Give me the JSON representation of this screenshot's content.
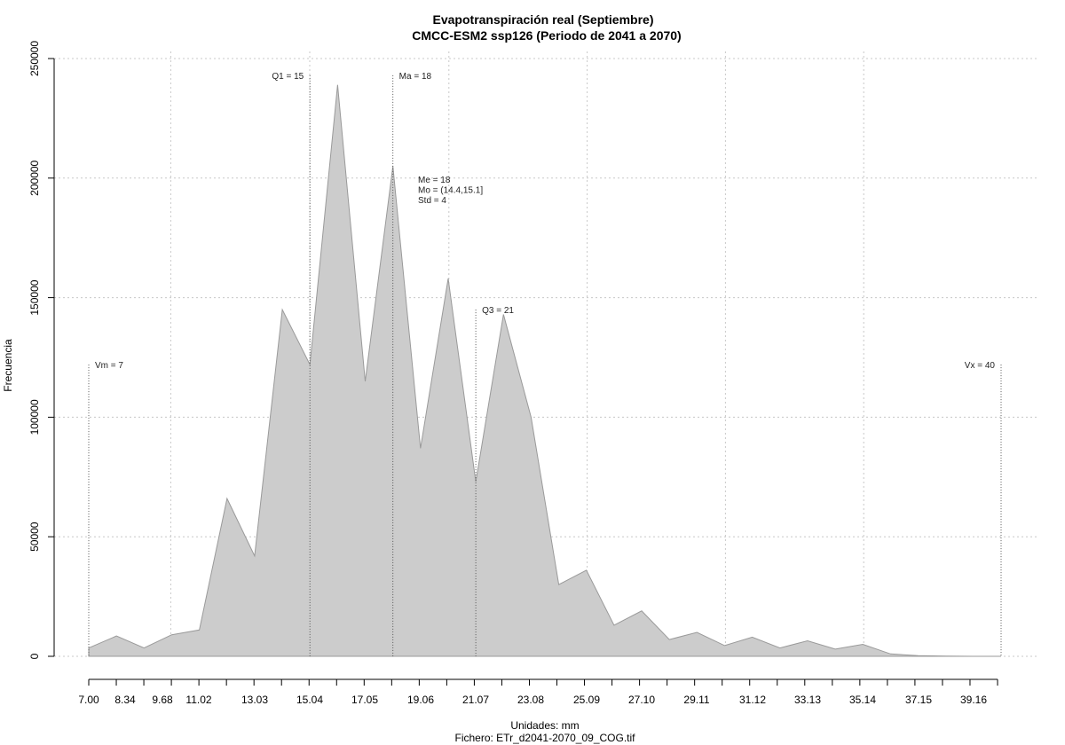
{
  "chart_data": {
    "type": "area",
    "title": "Evapotranspiración real (Septiembre)",
    "subtitle": "CMCC-ESM2 ssp126 (Periodo de 2041 a 2070)",
    "xlabel": "Unidades: mm",
    "ylabel": "Frecuencia",
    "caption": "Fichero: ETr_d2041-2070_09_COG.tif",
    "xlim": [
      7.0,
      40.8
    ],
    "ylim": [
      0,
      250000
    ],
    "grid": true,
    "x_ticks": [
      7.0,
      8.34,
      9.68,
      11.02,
      13.03,
      15.04,
      17.05,
      19.06,
      21.07,
      23.08,
      25.09,
      27.1,
      29.11,
      31.12,
      33.13,
      35.14,
      37.15,
      39.16
    ],
    "x_tick_labels": [
      "7.00",
      "8.34",
      "9.68",
      "11.02",
      "13.03",
      "15.04",
      "17.05",
      "19.06",
      "21.07",
      "23.08",
      "25.09",
      "27.10",
      "29.11",
      "31.12",
      "33.13",
      "35.14",
      "37.15",
      "39.16"
    ],
    "y_ticks": [
      0,
      50000,
      100000,
      150000,
      200000,
      250000
    ],
    "y_tick_labels": [
      "0",
      "50000",
      "100000",
      "150000",
      "200000",
      "250000"
    ],
    "series": [
      {
        "x": [
          7.0,
          8.0,
          9.0,
          10.0,
          11.0,
          12.0,
          13.0,
          14.0,
          15.0,
          16.0,
          17.0,
          18.0,
          19.0,
          20.0,
          21.0,
          22.0,
          23.0,
          24.0,
          25.0,
          26.0,
          27.0,
          28.0,
          29.0,
          30.0,
          31.0,
          32.0,
          33.0,
          34.0,
          35.0,
          36.0,
          37.0,
          38.0,
          39.0,
          40.0
        ],
        "values": [
          3500,
          8500,
          3500,
          9000,
          11000,
          66000,
          42000,
          145000,
          122000,
          239000,
          115000,
          205000,
          87000,
          158000,
          73000,
          143000,
          100000,
          30000,
          36000,
          13000,
          19000,
          7000,
          10000,
          4500,
          8000,
          3500,
          6500,
          3000,
          5000,
          1000,
          300,
          100,
          0,
          0
        ]
      }
    ],
    "markers": [
      {
        "label": "Vm = 7",
        "x": 7.0,
        "top": 122000,
        "label_side": "right"
      },
      {
        "label": "Q1 = 15",
        "x": 15.0,
        "top": 243000,
        "label_side": "left"
      },
      {
        "label": "Ma = 18",
        "x": 18.0,
        "top": 243000,
        "label_side": "right"
      },
      {
        "label": "Q3 = 21",
        "x": 21.0,
        "top": 145000,
        "label_side": "right"
      },
      {
        "label": "Vx = 40",
        "x": 40.0,
        "top": 122000,
        "label_side": "left"
      }
    ],
    "stats_annotation": [
      "Me = 18",
      "Mo = (14.4,15.1]",
      "Std = 4"
    ]
  }
}
